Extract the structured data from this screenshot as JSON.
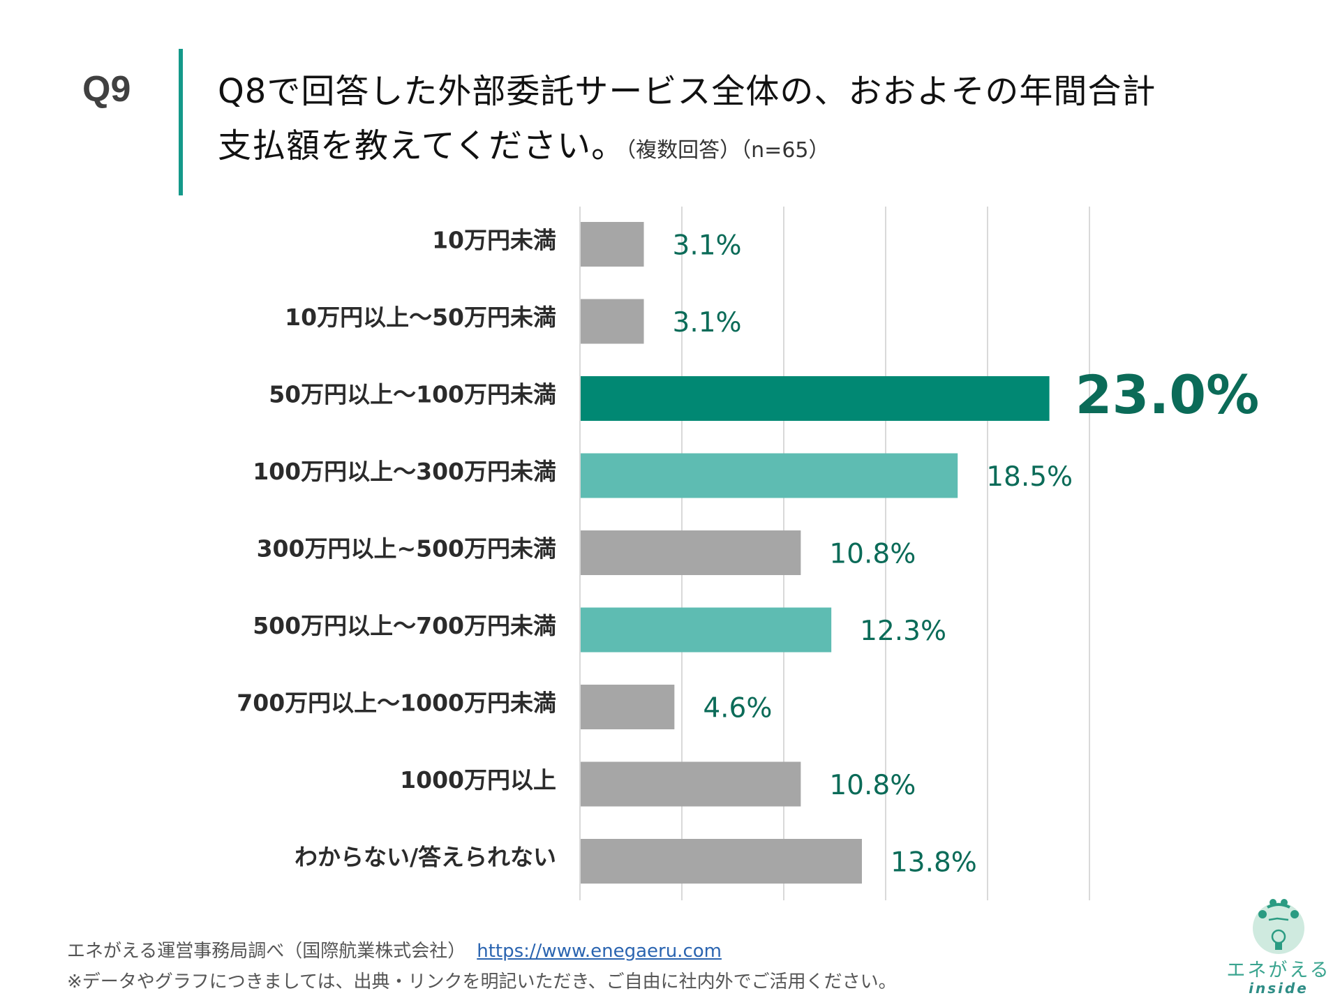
{
  "header": {
    "question_number": "Q9",
    "title_line1": "Q8で回答した外部委託サービス全体の、おおよその年間合計",
    "title_line2": "支払額を教えてください。",
    "title_note": "（複数回答）（n=65）"
  },
  "colors": {
    "highlight_primary": "#018873",
    "highlight_secondary": "#5ebcb2",
    "default_bar": "#a6a6a6",
    "value_label": "#0b6b58",
    "accent_rule": "#14998a",
    "gridline": "#d9d9d9"
  },
  "chart_data": {
    "type": "bar",
    "orientation": "horizontal",
    "title": "Q8で回答した外部委託サービス全体の、おおよその年間合計支払額を教えてください。（複数回答）（n=65）",
    "xlabel": "",
    "ylabel": "",
    "xlim": [
      0,
      25
    ],
    "grid_step": 5,
    "grid": true,
    "unit": "%",
    "categories": [
      "10万円未満",
      "10万円以上～50万円未満",
      "50万円以上～100万円未満",
      "100万円以上～300万円未満",
      "300万円以上~500万円未満",
      "500万円以上～700万円未満",
      "700万円以上～1000万円未満",
      "1000万円以上",
      "わからない/答えられない"
    ],
    "values": [
      3.1,
      3.1,
      23.0,
      18.5,
      10.8,
      12.3,
      4.6,
      10.8,
      13.8
    ],
    "value_labels": [
      "3.1%",
      "3.1%",
      "23.0%",
      "18.5%",
      "10.8%",
      "12.3%",
      "4.6%",
      "10.8%",
      "13.8%"
    ],
    "highlight": [
      "none",
      "none",
      "primary",
      "secondary",
      "none",
      "secondary",
      "none",
      "none",
      "none"
    ]
  },
  "footer": {
    "source": "エネがえる運営事務局調べ（国際航業株式会社）",
    "link": "https://www.enegaeru.com",
    "note": "※データやグラフにつきましては、出典・リンクを明記いただき、ご自由に社内外でご活用ください。"
  },
  "logo": {
    "name_jp": "エネがえる",
    "name_en": "inside"
  }
}
